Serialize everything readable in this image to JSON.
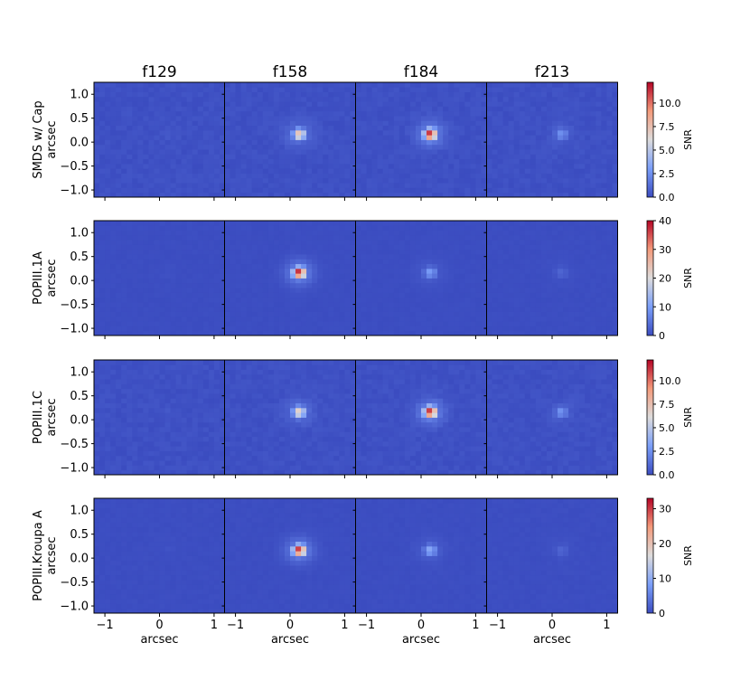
{
  "figure": {
    "column_titles": [
      "f129",
      "f158",
      "f184",
      "f213"
    ],
    "row_labels": [
      "SMDS w/ Cap",
      "POPIII.1A",
      "POPIII.1C",
      "POPIII.Kroupa A"
    ],
    "y_axis_label": "arcsec",
    "x_axis_label": "arcsec",
    "colorbar_label": "SNR"
  },
  "chart_data": {
    "type": "heatmap",
    "layout": "4 rows x 4 columns grid of SNR images",
    "colormap": "coolwarm",
    "columns": [
      "f129",
      "f158",
      "f184",
      "f213"
    ],
    "rows": [
      "SMDS w/ Cap",
      "POPIII.1A",
      "POPIII.1C",
      "POPIII.Kroupa A"
    ],
    "xlabel": "arcsec",
    "ylabel": "arcsec",
    "xlim": [
      -1.2,
      1.2
    ],
    "ylim": [
      -1.15,
      1.25
    ],
    "x_ticks": [
      -1,
      0,
      1
    ],
    "x_tick_labels": [
      "−1",
      "0",
      "1"
    ],
    "y_ticks": [
      1.0,
      0.5,
      0.0,
      -0.5,
      -1.0
    ],
    "y_tick_labels": [
      "1.0",
      "0.5",
      "0.0",
      "−0.5",
      "−1.0"
    ],
    "source_center_arcsec": [
      0.17,
      0.17
    ],
    "source_peak_snr": [
      [
        0.3,
        7.5,
        12.0,
        2.5
      ],
      [
        0.5,
        40.0,
        10.0,
        3.0
      ],
      [
        0.3,
        7.0,
        12.0,
        2.5
      ],
      [
        0.4,
        32.0,
        10.0,
        2.5
      ]
    ],
    "colorbars": [
      {
        "label": "SNR",
        "range": [
          0,
          12.2
        ],
        "ticks": [
          0.0,
          2.5,
          5.0,
          7.5,
          10.0
        ],
        "tick_labels": [
          "0.0",
          "2.5",
          "5.0",
          "7.5",
          "10.0"
        ]
      },
      {
        "label": "SNR",
        "range": [
          0,
          40
        ],
        "ticks": [
          0,
          10,
          20,
          30,
          40
        ],
        "tick_labels": [
          "0",
          "10",
          "20",
          "30",
          "40"
        ]
      },
      {
        "label": "SNR",
        "range": [
          0,
          12.2
        ],
        "ticks": [
          0.0,
          2.5,
          5.0,
          7.5,
          10.0
        ],
        "tick_labels": [
          "0.0",
          "2.5",
          "5.0",
          "7.5",
          "10.0"
        ]
      },
      {
        "label": "SNR",
        "range": [
          0,
          33
        ],
        "ticks": [
          0,
          10,
          20,
          30
        ],
        "tick_labels": [
          "0",
          "10",
          "20",
          "30"
        ]
      }
    ]
  }
}
